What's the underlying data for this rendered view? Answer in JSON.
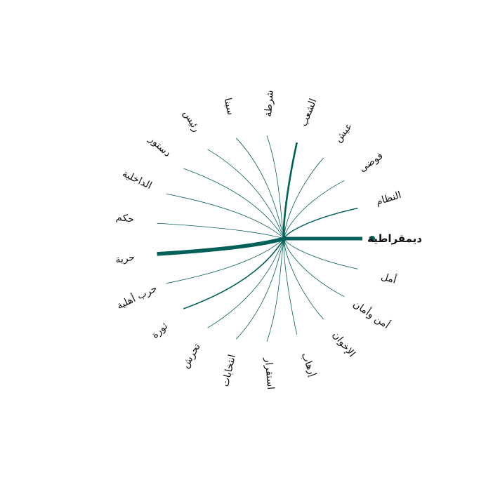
{
  "diagram": {
    "type": "radial-word-association",
    "accent_color": "#00605a",
    "center_word": "ديمقراطية",
    "nodes": [
      {
        "label": "ديمقراطية",
        "weight": 5.0
      },
      {
        "label": "أمل",
        "weight": 0.8
      },
      {
        "label": "أمن وأمان",
        "weight": 0.8
      },
      {
        "label": "الإخوان",
        "weight": 0.8
      },
      {
        "label": "إرهاب",
        "weight": 0.8
      },
      {
        "label": "استقرار",
        "weight": 0.8
      },
      {
        "label": "انتخابات",
        "weight": 0.8
      },
      {
        "label": "تحرش",
        "weight": 0.8
      },
      {
        "label": "ثورة",
        "weight": 1.6
      },
      {
        "label": "حرب أهلية",
        "weight": 0.8
      },
      {
        "label": "حرية",
        "weight": 5.5
      },
      {
        "label": "حكم",
        "weight": 0.8
      },
      {
        "label": "الداخلية",
        "weight": 0.8
      },
      {
        "label": "دستور",
        "weight": 0.8
      },
      {
        "label": "رئيس",
        "weight": 0.8
      },
      {
        "label": "سينا",
        "weight": 0.8
      },
      {
        "label": "شرطة",
        "weight": 0.8
      },
      {
        "label": "الشعب",
        "weight": 2.6
      },
      {
        "label": "عيش",
        "weight": 0.8
      },
      {
        "label": "فوضى",
        "weight": 0.8
      },
      {
        "label": "النظام",
        "weight": 1.4
      }
    ]
  }
}
